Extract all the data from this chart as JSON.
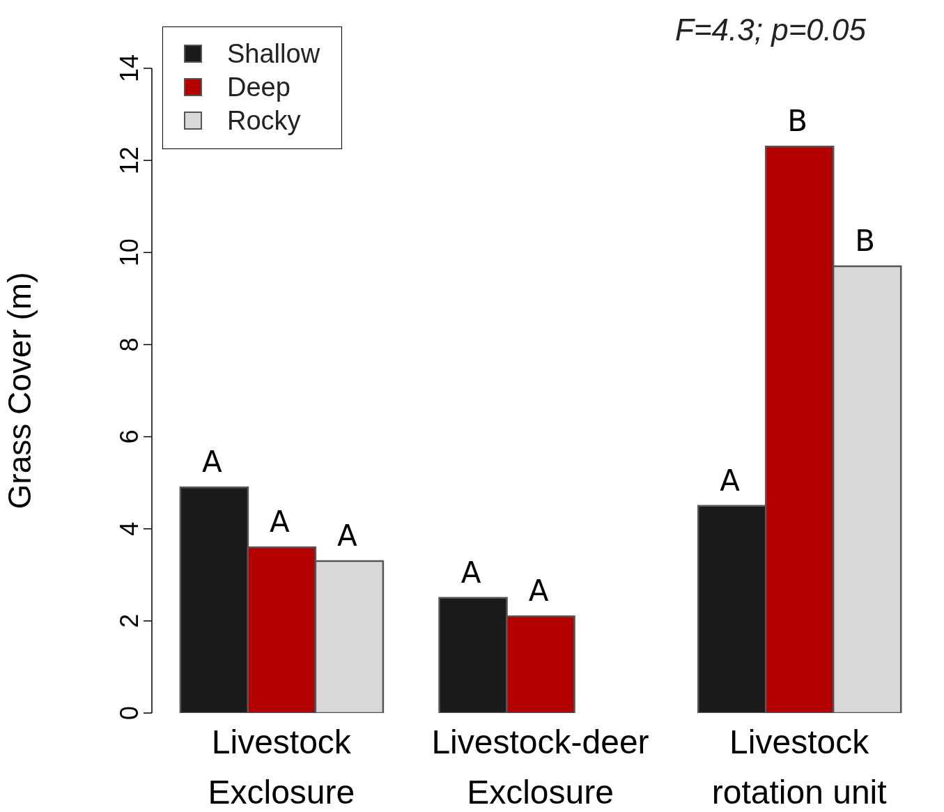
{
  "chart_data": {
    "type": "bar",
    "ylabel": "Grass Cover (m)",
    "categories": [
      "Livestock\nExclosure",
      "Livestock-deer\nExclosure",
      "Livestock\nrotation unit"
    ],
    "series": [
      {
        "name": "Shallow",
        "color": "#1a1a1a",
        "values": [
          4.9,
          2.5,
          4.5
        ]
      },
      {
        "name": "Deep",
        "color": "#b50000",
        "values": [
          3.6,
          2.1,
          12.3
        ]
      },
      {
        "name": "Rocky",
        "color": "#d9d9d9",
        "values": [
          3.3,
          null,
          9.7
        ]
      }
    ],
    "ylim": [
      0,
      14
    ],
    "yticks": [
      0,
      2,
      4,
      6,
      8,
      10,
      12,
      14
    ],
    "grid": false,
    "legend": "top left",
    "annotations": [
      "F=4.3; p=0.05",
      "A",
      "A",
      "A",
      "A",
      "A",
      "A",
      "B",
      "B"
    ]
  }
}
